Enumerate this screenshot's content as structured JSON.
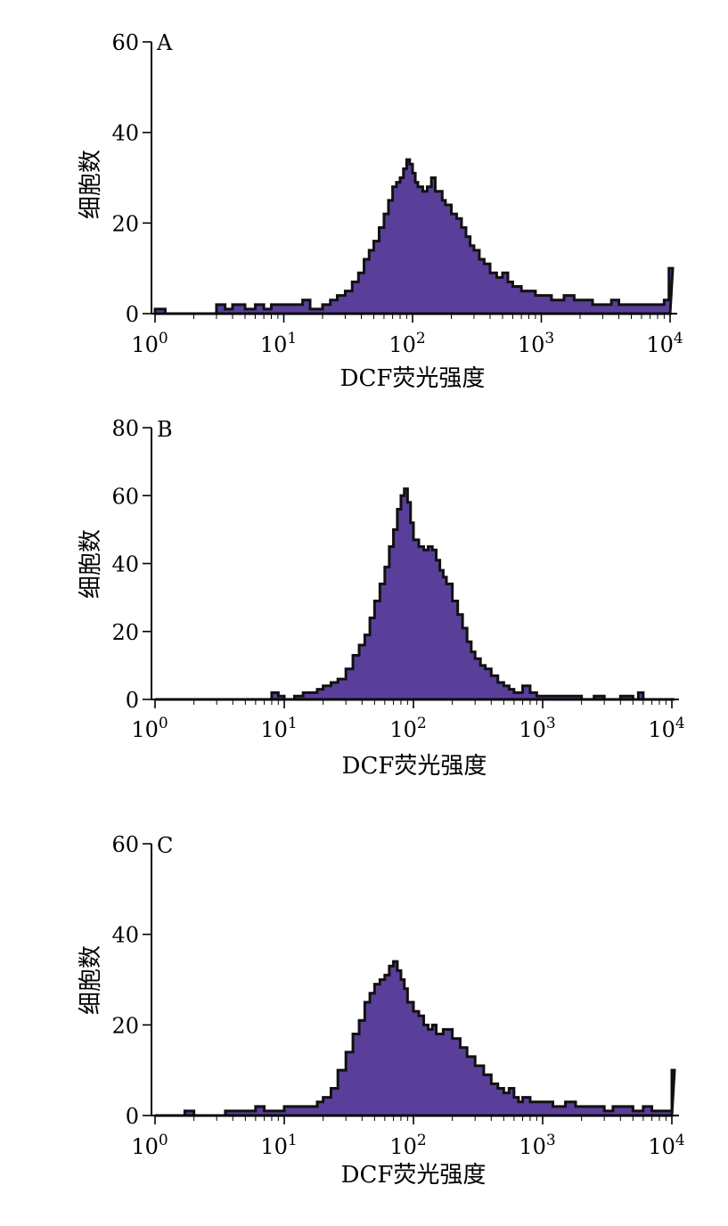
{
  "chart_data": [
    {
      "type": "area",
      "panel_label": "A",
      "xlabel": "DCF荧光强度",
      "ylabel": "细胞数",
      "x_scale": "log",
      "xlim": [
        1,
        10000
      ],
      "ylim": [
        0,
        60
      ],
      "yticks": [
        "0",
        "20",
        "40",
        "60"
      ],
      "xticks": [
        {
          "base": "10",
          "exp": "0"
        },
        {
          "base": "10",
          "exp": "1"
        },
        {
          "base": "10",
          "exp": "2"
        },
        {
          "base": "10",
          "exp": "3"
        },
        {
          "base": "10",
          "exp": "4"
        }
      ],
      "fill_color": "#5a3f9a",
      "series": [
        {
          "x": [
            1,
            1.2,
            1.5,
            2,
            2.5,
            3,
            3.5,
            4,
            5,
            6,
            7,
            8,
            10,
            12,
            14,
            16,
            18,
            20,
            23,
            26,
            30,
            34,
            38,
            42,
            46,
            50,
            55,
            60,
            65,
            70,
            75,
            80,
            85,
            90,
            95,
            100,
            105,
            110,
            115,
            120,
            130,
            140,
            150,
            160,
            170,
            180,
            200,
            220,
            240,
            260,
            280,
            300,
            330,
            360,
            400,
            450,
            500,
            550,
            600,
            700,
            800,
            900,
            1000,
            1200,
            1500,
            1800,
            2000,
            2500,
            3000,
            3500,
            4000,
            5000,
            6000,
            7000,
            8000,
            9000,
            9800,
            10000
          ],
          "y": [
            1,
            0,
            0,
            0,
            0,
            2,
            1,
            2,
            1,
            2,
            1,
            2,
            2,
            2,
            3,
            1,
            1,
            2,
            3,
            4,
            5,
            7,
            9,
            12,
            14,
            16,
            19,
            22,
            25,
            28,
            29,
            30,
            32,
            34,
            33,
            31,
            29,
            28,
            28,
            27,
            28,
            30,
            27,
            27,
            25,
            24,
            22,
            21,
            19,
            17,
            15,
            14,
            12,
            11,
            9,
            8,
            9,
            7,
            6,
            5,
            5,
            4,
            4,
            3,
            4,
            3,
            3,
            2,
            2,
            3,
            2,
            2,
            2,
            2,
            2,
            3,
            10,
            10
          ]
        }
      ]
    },
    {
      "type": "area",
      "panel_label": "B",
      "xlabel": "DCF荧光强度",
      "ylabel": "细胞数",
      "x_scale": "log",
      "xlim": [
        1,
        10000
      ],
      "ylim": [
        0,
        80
      ],
      "yticks": [
        "0",
        "20",
        "40",
        "60",
        "80"
      ],
      "xticks": [
        {
          "base": "10",
          "exp": "0"
        },
        {
          "base": "10",
          "exp": "1"
        },
        {
          "base": "10",
          "exp": "2"
        },
        {
          "base": "10",
          "exp": "3"
        },
        {
          "base": "10",
          "exp": "4"
        }
      ],
      "fill_color": "#5a3f9a",
      "series": [
        {
          "x": [
            1,
            2,
            3,
            4,
            5,
            6,
            7,
            8,
            9,
            10,
            12,
            14,
            16,
            18,
            20,
            23,
            26,
            30,
            34,
            38,
            42,
            46,
            50,
            55,
            60,
            65,
            70,
            75,
            80,
            85,
            90,
            95,
            100,
            110,
            120,
            130,
            140,
            150,
            160,
            170,
            180,
            200,
            220,
            240,
            260,
            280,
            300,
            330,
            360,
            400,
            450,
            500,
            550,
            600,
            700,
            800,
            900,
            1000,
            1200,
            1500,
            2000,
            2500,
            3000,
            4000,
            5000,
            5500,
            6000,
            7000,
            8000,
            10000
          ],
          "y": [
            0,
            0,
            0,
            0,
            0,
            0,
            0,
            2,
            1,
            0,
            1,
            2,
            2,
            3,
            4,
            5,
            6,
            9,
            13,
            16,
            19,
            24,
            29,
            34,
            39,
            45,
            50,
            56,
            60,
            62,
            58,
            52,
            47,
            45,
            44,
            45,
            44,
            41,
            38,
            36,
            34,
            29,
            25,
            21,
            17,
            14,
            12,
            10,
            9,
            7,
            5,
            4,
            3,
            2,
            4,
            2,
            1,
            1,
            1,
            1,
            0,
            1,
            0,
            1,
            0,
            2,
            0,
            0,
            0,
            0
          ]
        }
      ]
    },
    {
      "type": "area",
      "panel_label": "C",
      "xlabel": "DCF荧光强度",
      "ylabel": "细胞数",
      "x_scale": "log",
      "xlim": [
        1,
        10000
      ],
      "ylim": [
        0,
        60
      ],
      "yticks": [
        "0",
        "20",
        "40",
        "60"
      ],
      "xticks": [
        {
          "base": "10",
          "exp": "0"
        },
        {
          "base": "10",
          "exp": "1"
        },
        {
          "base": "10",
          "exp": "2"
        },
        {
          "base": "10",
          "exp": "3"
        },
        {
          "base": "10",
          "exp": "4"
        }
      ],
      "fill_color": "#5a3f9a",
      "series": [
        {
          "x": [
            1,
            1.2,
            1.5,
            1.7,
            2,
            2.5,
            3,
            3.5,
            4,
            5,
            6,
            7,
            8,
            10,
            12,
            14,
            16,
            18,
            20,
            23,
            26,
            30,
            34,
            38,
            42,
            46,
            50,
            55,
            60,
            65,
            70,
            75,
            80,
            85,
            90,
            100,
            110,
            120,
            130,
            140,
            150,
            170,
            200,
            230,
            260,
            300,
            350,
            400,
            450,
            500,
            550,
            600,
            650,
            700,
            800,
            1000,
            1200,
            1500,
            1800,
            2000,
            2500,
            3000,
            3500,
            4000,
            5000,
            6000,
            7000,
            8000,
            9000,
            9800,
            10000
          ],
          "y": [
            0,
            0,
            0,
            1,
            0,
            0,
            0,
            1,
            1,
            1,
            2,
            1,
            1,
            2,
            2,
            2,
            2,
            3,
            4,
            6,
            10,
            14,
            18,
            21,
            25,
            27,
            29,
            30,
            31,
            33,
            34,
            32,
            30,
            28,
            25,
            23,
            22,
            20,
            19,
            20,
            18,
            19,
            17,
            15,
            13,
            11,
            9,
            7,
            6,
            5,
            6,
            4,
            3,
            4,
            3,
            3,
            2,
            3,
            2,
            2,
            2,
            1,
            2,
            2,
            1,
            2,
            1,
            1,
            1,
            1,
            10
          ]
        }
      ]
    }
  ]
}
